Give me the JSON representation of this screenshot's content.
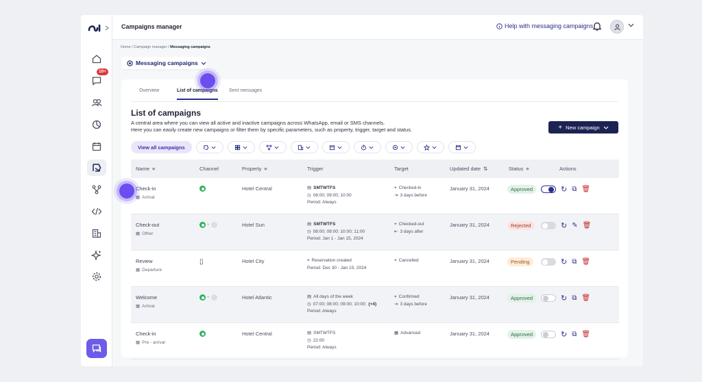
{
  "app": {
    "title": "Campaigns manager",
    "help_link": "Help with messaging campaigns"
  },
  "sidebar": {
    "items": [
      {
        "icon": "home-icon"
      },
      {
        "icon": "chat-icon",
        "badge": "10+"
      },
      {
        "icon": "users-icon"
      },
      {
        "icon": "pie-chart-icon"
      },
      {
        "icon": "calendar-icon"
      },
      {
        "icon": "campaign-icon",
        "active": true
      },
      {
        "icon": "flow-icon"
      },
      {
        "icon": "code-icon"
      },
      {
        "icon": "building-icon"
      },
      {
        "icon": "sparkle-icon"
      },
      {
        "icon": "settings-icon"
      }
    ]
  },
  "breadcrumb": {
    "home": "Home",
    "sep": "/",
    "campaign_manager": "Campaign manager",
    "current": "Messaging campaigns"
  },
  "selector": {
    "label": "Messaging campaigns"
  },
  "tabs": [
    {
      "label": "Overview"
    },
    {
      "label": "List of campaigns",
      "active": true
    },
    {
      "label": "Sent messages"
    }
  ],
  "list": {
    "title": "List of campaigns",
    "desc1": "A central area where you can view all active and inactive campaigns across WhatsApp, email or SMS channels.",
    "desc2": "Here you can easily create new campaigns or filter them by specific parameters, such as property, trigger, target and status.",
    "new_button": "New campaign",
    "view_all": "View all campaigns"
  },
  "table": {
    "headers": {
      "name": "Name",
      "channel": "Channel",
      "property": "Property",
      "trigger": "Trigger",
      "target": "Target",
      "updated": "Updated date",
      "status": "Status",
      "actions": "Actions"
    },
    "rows": [
      {
        "name": "Check-in",
        "type": "Arrival",
        "property": "Hotel Central",
        "days": "SMTWTFS",
        "time": "08:00; 09:00; 10:00",
        "period": "Period: Always",
        "target1": "Checked-in",
        "target2": "3 days before",
        "date": "January 31, 2024",
        "status": "Approved"
      },
      {
        "name": "Check-out",
        "type": "Other",
        "property": "Hotel Sun",
        "days": "SMTWTFS",
        "time": "08:00; 09:00; 10:00; 11:00",
        "period": "Period: Jan 1 - Jan 15, 2024",
        "target1": "Checked-out",
        "target2": "3 days after",
        "date": "January 31, 2024",
        "status": "Rejected"
      },
      {
        "name": "Review",
        "type": "Departure",
        "property": "Hotel City",
        "trigger1": "Reservation created",
        "period": "Period: Dec 30 - Jan 15, 2024",
        "target1": "Cancelled",
        "date": "January 31, 2024",
        "status": "Pending"
      },
      {
        "name": "Welcome",
        "type": "Arrival",
        "property": "Hotel Atlantic",
        "trigger1": "All days of the week",
        "time": "07:00; 08:00; 09:00; 10:00;",
        "more": "(+4)",
        "period": "Period: Always",
        "target1": "Confirmed",
        "target2": "3 days before",
        "date": "January 31, 2024",
        "status": "Approved"
      },
      {
        "name": "Check-in",
        "type": "Pre - arrival",
        "property": "Hotel Central",
        "days": "SMTWTFS",
        "time": "22:00",
        "period": "Period: Always",
        "target1": "Advanced",
        "date": "January 31, 2024",
        "status": "Approved"
      }
    ]
  },
  "colors": {
    "primary": "#1c2352",
    "accent": "#6c4df0",
    "approved": "#2e6b45",
    "rejected": "#a33a2a",
    "pending": "#a0581a"
  }
}
